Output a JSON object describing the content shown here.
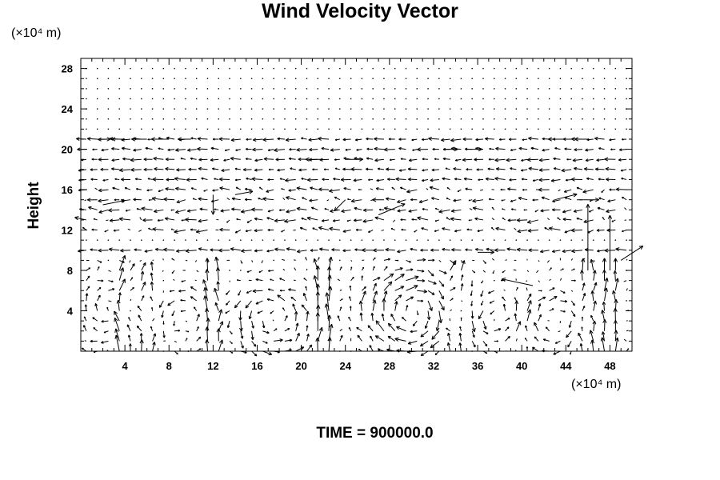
{
  "chart_data": {
    "type": "vector-field",
    "title": "Wind Velocity Vector",
    "xunit": "(×10⁴ m)",
    "yunit": "(×10⁴ m)",
    "ylabel": "Height",
    "xlim": [
      0,
      50
    ],
    "ylim": [
      0,
      29
    ],
    "xticks": [
      4,
      8,
      12,
      16,
      20,
      24,
      28,
      32,
      36,
      40,
      44,
      48
    ],
    "yticks": [
      4,
      8,
      12,
      16,
      20,
      24,
      28
    ],
    "grid": false,
    "vector_grid": {
      "x_start": 0.5,
      "x_step": 1.0,
      "y_start": 0.0,
      "y_step": 1.0
    },
    "vectors": [
      {
        "x": 1.5,
        "y": 21.0,
        "u": 1.2,
        "v": 0.0
      },
      {
        "x": 4.0,
        "y": 21.0,
        "u": -1.2,
        "v": 0.0
      },
      {
        "x": 6.0,
        "y": 21.0,
        "u": -1.4,
        "v": 0.0
      },
      {
        "x": 8.0,
        "y": 21.0,
        "u": -1.6,
        "v": 0.0
      },
      {
        "x": 10.0,
        "y": 21.0,
        "u": -1.2,
        "v": 0.0
      },
      {
        "x": 44.0,
        "y": 21.0,
        "u": -1.6,
        "v": 0.0
      },
      {
        "x": 46.0,
        "y": 21.0,
        "u": -1.2,
        "v": 0.0
      },
      {
        "x": 22.0,
        "y": 19.0,
        "u": -1.6,
        "v": 0.0
      },
      {
        "x": 24.0,
        "y": 19.0,
        "u": 1.6,
        "v": 0.0
      },
      {
        "x": 33.0,
        "y": 20.0,
        "u": 1.2,
        "v": 0.0
      },
      {
        "x": 35.0,
        "y": 20.0,
        "u": 1.4,
        "v": 0.0
      },
      {
        "x": 2.0,
        "y": 14.5,
        "u": 2.0,
        "v": 0.4
      },
      {
        "x": 14.0,
        "y": 15.5,
        "u": 1.6,
        "v": 0.3
      },
      {
        "x": 12.0,
        "y": 15.5,
        "u": 0.0,
        "v": -1.8
      },
      {
        "x": 24.0,
        "y": 15.0,
        "u": -1.0,
        "v": -1.0
      },
      {
        "x": 27.0,
        "y": 13.5,
        "u": 2.4,
        "v": 1.0
      },
      {
        "x": 43.0,
        "y": 15.0,
        "u": 2.0,
        "v": 0.5
      },
      {
        "x": 45.0,
        "y": 15.0,
        "u": 2.0,
        "v": 0.0
      },
      {
        "x": 36.0,
        "y": 9.8,
        "u": 1.5,
        "v": 0.0
      },
      {
        "x": 41.0,
        "y": 6.5,
        "u": -2.8,
        "v": 0.6
      },
      {
        "x": 49.0,
        "y": 9.0,
        "u": 2.0,
        "v": 1.3
      },
      {
        "x": 46.0,
        "y": 8.0,
        "u": 0.0,
        "v": 6.0
      },
      {
        "x": 48.0,
        "y": 8.0,
        "u": 0.0,
        "v": 5.0
      }
    ]
  },
  "footer": {
    "time_label": "TIME = 900000.0"
  }
}
